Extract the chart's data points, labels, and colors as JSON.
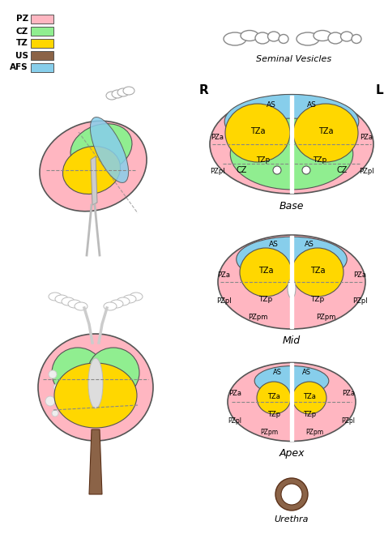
{
  "colors": {
    "PZ": "#FFB6C1",
    "CZ": "#90EE90",
    "TZ": "#FFD700",
    "US": "#8B6347",
    "AFS": "#87CEEB",
    "outline": "#555555",
    "dashed": "#888888",
    "bg": "#FFFFFF"
  },
  "legend": {
    "labels": [
      "PZ",
      "CZ",
      "TZ",
      "US",
      "AFS"
    ],
    "colors": [
      "#FFB6C1",
      "#90EE90",
      "#FFD700",
      "#8B6347",
      "#87CEEB"
    ]
  },
  "seminal_vesicles_label": "Seminal Vesicles",
  "urethra_label": "Urethra",
  "R_label": "R",
  "L_label": "L"
}
